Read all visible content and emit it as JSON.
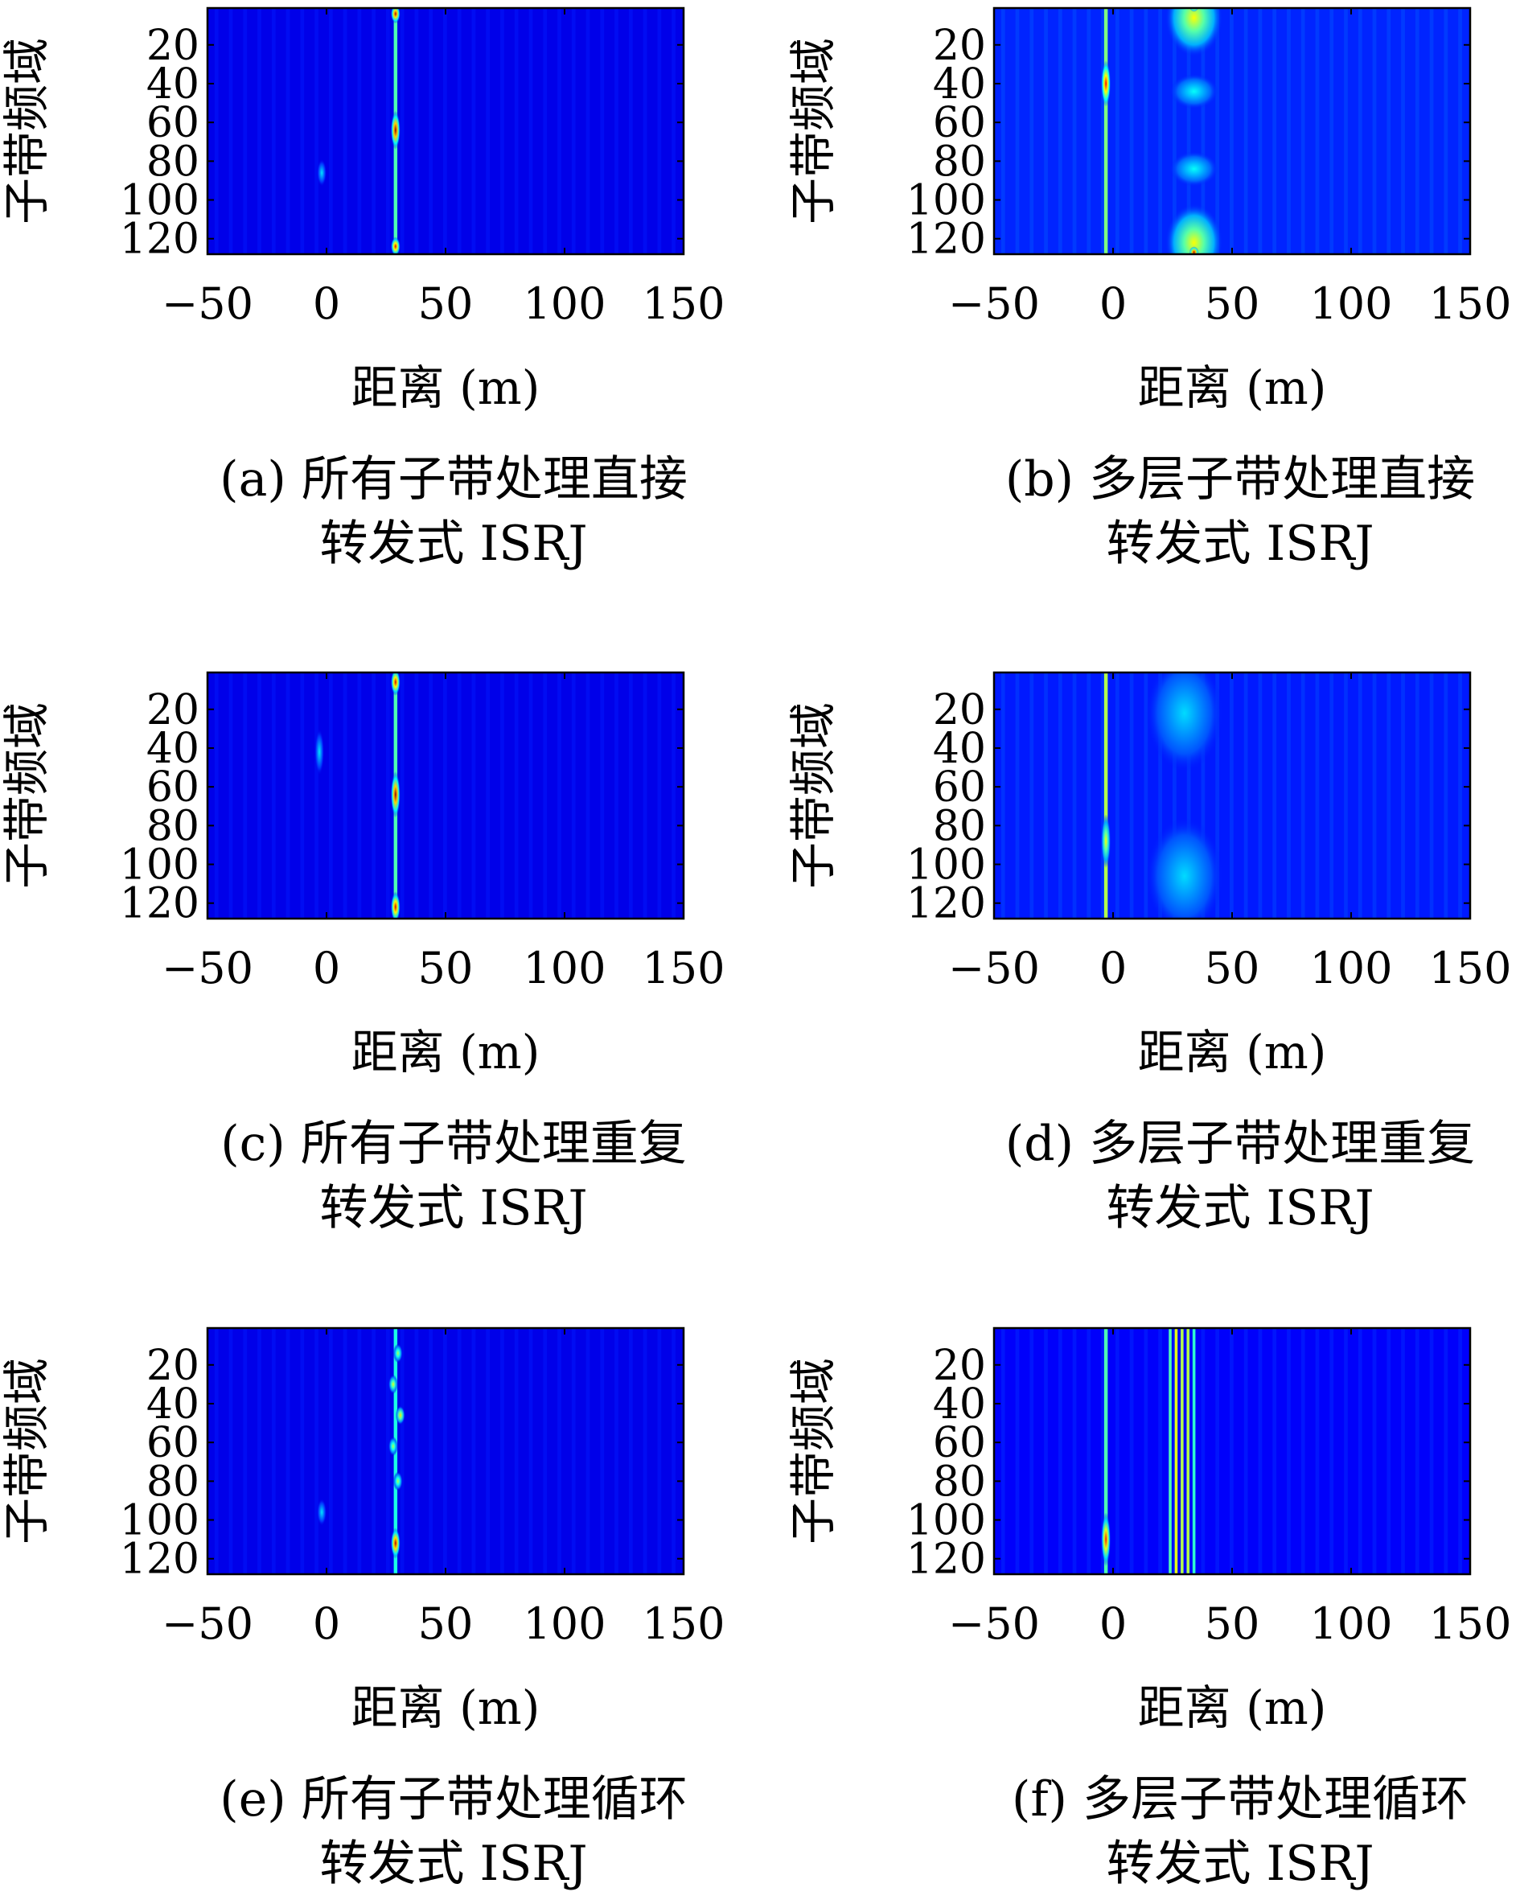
{
  "figure": {
    "panel_labels": [
      "(a)",
      "(b)",
      "(c)",
      "(d)",
      "(e)",
      "(f)"
    ]
  },
  "colormap": {
    "name": "jet",
    "stops": [
      "#00008f",
      "#0000ff",
      "#00ffff",
      "#ffff00",
      "#ff0000",
      "#800000"
    ]
  },
  "chart_data": [
    {
      "type": "heatmap",
      "panel": "(a)",
      "caption_line1": "(a) 所有子带处理直接",
      "caption_line2": "转发式 ISRJ",
      "xlabel": "距离 (m)",
      "ylabel": "子带频域",
      "xlim": [
        -50,
        150
      ],
      "ylim": [
        1,
        128
      ],
      "y_reversed": true,
      "xticks": [
        -50,
        0,
        50,
        100,
        150
      ],
      "yticks": [
        20,
        40,
        60,
        80,
        100,
        120
      ],
      "xtick_labels": [
        "−50",
        "0",
        "50",
        "100",
        "150"
      ],
      "ytick_labels": [
        "20",
        "40",
        "60",
        "80",
        "100",
        "120"
      ],
      "background_level": 0.1,
      "features": [
        {
          "kind": "column",
          "x": 29,
          "width": 1.5,
          "level": 0.45
        },
        {
          "kind": "spot",
          "x": 29,
          "y": 4,
          "rx": 1.5,
          "ry": 5,
          "level": 0.95
        },
        {
          "kind": "spot",
          "x": 29,
          "y": 64,
          "rx": 2,
          "ry": 10,
          "level": 0.98
        },
        {
          "kind": "spot",
          "x": 29,
          "y": 124,
          "rx": 1.5,
          "ry": 5,
          "level": 0.9
        },
        {
          "kind": "spot",
          "x": -2,
          "y": 86,
          "rx": 1.5,
          "ry": 7,
          "level": 0.35
        }
      ]
    },
    {
      "type": "heatmap",
      "panel": "(b)",
      "caption_line1": "(b) 多层子带处理直接",
      "caption_line2": "转发式 ISRJ",
      "xlabel": "距离 (m)",
      "ylabel": "子带频域",
      "xlim": [
        -50,
        150
      ],
      "ylim": [
        1,
        128
      ],
      "y_reversed": true,
      "xticks": [
        -50,
        0,
        50,
        100,
        150
      ],
      "yticks": [
        20,
        40,
        60,
        80,
        100,
        120
      ],
      "xtick_labels": [
        "−50",
        "0",
        "50",
        "100",
        "150"
      ],
      "ytick_labels": [
        "20",
        "40",
        "60",
        "80",
        "100",
        "120"
      ],
      "background_level": 0.16,
      "features": [
        {
          "kind": "column",
          "x": -3,
          "width": 1.5,
          "level": 0.5
        },
        {
          "kind": "spot",
          "x": -3,
          "y": 40,
          "rx": 2,
          "ry": 12,
          "level": 0.88
        },
        {
          "kind": "spot",
          "x": 34,
          "y": 6,
          "rx": 12,
          "ry": 20,
          "level": 0.62
        },
        {
          "kind": "spot",
          "x": 34,
          "y": 122,
          "rx": 12,
          "ry": 20,
          "level": 0.62
        },
        {
          "kind": "spot",
          "x": 34,
          "y": 0,
          "rx": 2,
          "ry": 3,
          "level": 0.95
        },
        {
          "kind": "spot",
          "x": 34,
          "y": 127,
          "rx": 2,
          "ry": 3,
          "level": 0.95
        },
        {
          "kind": "spot",
          "x": 34,
          "y": 44,
          "rx": 10,
          "ry": 9,
          "level": 0.38
        },
        {
          "kind": "spot",
          "x": 34,
          "y": 84,
          "rx": 10,
          "ry": 9,
          "level": 0.38
        }
      ]
    },
    {
      "type": "heatmap",
      "panel": "(c)",
      "caption_line1": "(c) 所有子带处理重复",
      "caption_line2": "转发式 ISRJ",
      "xlabel": "距离 (m)",
      "ylabel": "子带频域",
      "xlim": [
        -50,
        150
      ],
      "ylim": [
        1,
        128
      ],
      "y_reversed": true,
      "xticks": [
        -50,
        0,
        50,
        100,
        150
      ],
      "yticks": [
        20,
        40,
        60,
        80,
        100,
        120
      ],
      "xtick_labels": [
        "−50",
        "0",
        "50",
        "100",
        "150"
      ],
      "ytick_labels": [
        "20",
        "40",
        "60",
        "80",
        "100",
        "120"
      ],
      "background_level": 0.1,
      "features": [
        {
          "kind": "column",
          "x": 29,
          "width": 1.5,
          "level": 0.45
        },
        {
          "kind": "spot",
          "x": 29,
          "y": 6,
          "rx": 1.5,
          "ry": 7,
          "level": 0.92
        },
        {
          "kind": "spot",
          "x": 29,
          "y": 64,
          "rx": 2,
          "ry": 12,
          "level": 0.98
        },
        {
          "kind": "spot",
          "x": 29,
          "y": 122,
          "rx": 1.5,
          "ry": 8,
          "level": 0.92
        },
        {
          "kind": "spot",
          "x": -3,
          "y": 42,
          "rx": 1.5,
          "ry": 12,
          "level": 0.35
        }
      ]
    },
    {
      "type": "heatmap",
      "panel": "(d)",
      "caption_line1": "(d) 多层子带处理重复",
      "caption_line2": "转发式 ISRJ",
      "xlabel": "距离 (m)",
      "ylabel": "子带频域",
      "xlim": [
        -50,
        150
      ],
      "ylim": [
        1,
        128
      ],
      "y_reversed": true,
      "xticks": [
        -50,
        0,
        50,
        100,
        150
      ],
      "yticks": [
        20,
        40,
        60,
        80,
        100,
        120
      ],
      "xtick_labels": [
        "−50",
        "0",
        "50",
        "100",
        "150"
      ],
      "ytick_labels": [
        "20",
        "40",
        "60",
        "80",
        "100",
        "120"
      ],
      "background_level": 0.15,
      "features": [
        {
          "kind": "column",
          "x": -3,
          "width": 1.5,
          "level": 0.55
        },
        {
          "kind": "spot",
          "x": -3,
          "y": 88,
          "rx": 1.5,
          "ry": 14,
          "level": 0.62
        },
        {
          "kind": "spot",
          "x": 30,
          "y": 22,
          "rx": 16,
          "ry": 30,
          "level": 0.34
        },
        {
          "kind": "spot",
          "x": 30,
          "y": 106,
          "rx": 16,
          "ry": 30,
          "level": 0.34
        }
      ]
    },
    {
      "type": "heatmap",
      "panel": "(e)",
      "caption_line1": "(e) 所有子带处理循环",
      "caption_line2": "转发式 ISRJ",
      "xlabel": "距离 (m)",
      "ylabel": "子带频域",
      "xlim": [
        -50,
        150
      ],
      "ylim": [
        1,
        128
      ],
      "y_reversed": true,
      "xticks": [
        -50,
        0,
        50,
        100,
        150
      ],
      "yticks": [
        20,
        40,
        60,
        80,
        100,
        120
      ],
      "xtick_labels": [
        "−50",
        "0",
        "50",
        "100",
        "150"
      ],
      "ytick_labels": [
        "20",
        "40",
        "60",
        "80",
        "100",
        "120"
      ],
      "background_level": 0.1,
      "features": [
        {
          "kind": "column",
          "x": 29,
          "width": 1.5,
          "level": 0.4
        },
        {
          "kind": "spot",
          "x": 30,
          "y": 14,
          "rx": 1.5,
          "ry": 5,
          "level": 0.55
        },
        {
          "kind": "spot",
          "x": 28,
          "y": 30,
          "rx": 1.5,
          "ry": 5,
          "level": 0.6
        },
        {
          "kind": "spot",
          "x": 31,
          "y": 46,
          "rx": 1.5,
          "ry": 5,
          "level": 0.65
        },
        {
          "kind": "spot",
          "x": 28,
          "y": 62,
          "rx": 1.5,
          "ry": 5,
          "level": 0.55
        },
        {
          "kind": "spot",
          "x": 30,
          "y": 80,
          "rx": 1.5,
          "ry": 5,
          "level": 0.55
        },
        {
          "kind": "spot",
          "x": 29,
          "y": 112,
          "rx": 2,
          "ry": 8,
          "level": 0.95
        },
        {
          "kind": "spot",
          "x": -2,
          "y": 96,
          "rx": 1.5,
          "ry": 7,
          "level": 0.35
        }
      ]
    },
    {
      "type": "heatmap",
      "panel": "(f)",
      "caption_line1": "(f) 多层子带处理循环",
      "caption_line2": "转发式 ISRJ",
      "xlabel": "距离 (m)",
      "ylabel": "子带频域",
      "xlim": [
        -50,
        150
      ],
      "ylim": [
        1,
        128
      ],
      "y_reversed": true,
      "xticks": [
        -50,
        0,
        50,
        100,
        150
      ],
      "yticks": [
        20,
        40,
        60,
        80,
        100,
        120
      ],
      "xtick_labels": [
        "−50",
        "0",
        "50",
        "100",
        "150"
      ],
      "ytick_labels": [
        "20",
        "40",
        "60",
        "80",
        "100",
        "120"
      ],
      "background_level": 0.12,
      "features": [
        {
          "kind": "column",
          "x": -3,
          "width": 1.5,
          "level": 0.45
        },
        {
          "kind": "spot",
          "x": -3,
          "y": 110,
          "rx": 1.5,
          "ry": 14,
          "level": 0.85
        },
        {
          "kind": "column",
          "x": 24,
          "width": 1.2,
          "level": 0.45
        },
        {
          "kind": "column",
          "x": 26.5,
          "width": 1.2,
          "level": 0.6
        },
        {
          "kind": "column",
          "x": 29,
          "width": 1.2,
          "level": 0.55
        },
        {
          "kind": "column",
          "x": 31.5,
          "width": 1.2,
          "level": 0.55
        },
        {
          "kind": "column",
          "x": 34,
          "width": 1.2,
          "level": 0.42
        }
      ]
    }
  ]
}
